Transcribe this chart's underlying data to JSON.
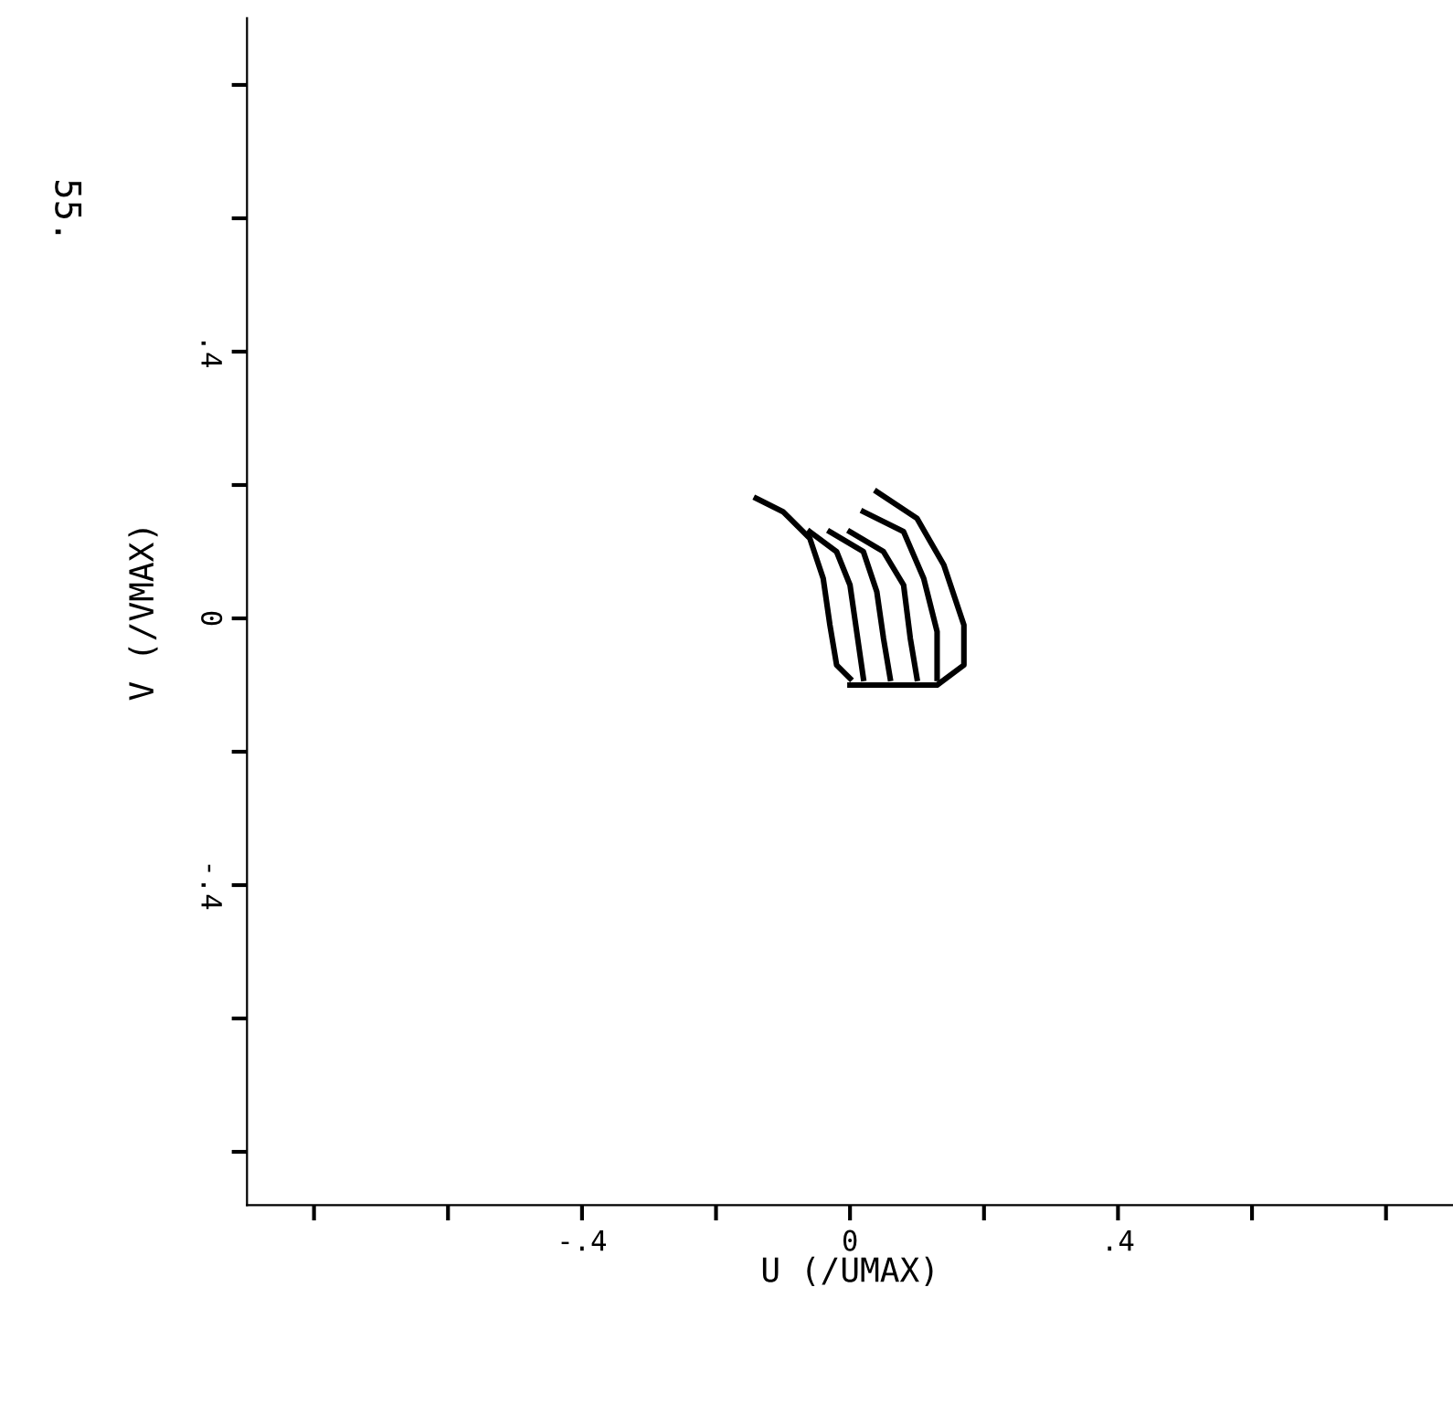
{
  "chart_data": {
    "type": "line",
    "xlabel": "U (/UMAX)",
    "ylabel": "V (/VMAX)",
    "annotations": [
      "55."
    ],
    "xlim": [
      -0.9,
      0.9
    ],
    "ylim": [
      -0.88,
      0.9
    ],
    "xticks": [
      {
        "value": -0.8,
        "label": null
      },
      {
        "value": -0.6,
        "label": null
      },
      {
        "value": -0.4,
        "label": "-.4"
      },
      {
        "value": -0.2,
        "label": null
      },
      0,
      {
        "value": 0.2,
        "label": null
      },
      {
        "value": 0.4,
        "label": ".4"
      },
      {
        "value": 0.6,
        "label": null
      },
      {
        "value": 0.8,
        "label": null
      }
    ],
    "yticks": [
      {
        "value": -0.8,
        "label": null
      },
      {
        "value": -0.6,
        "label": null
      },
      {
        "value": -0.4,
        "label": "-.4"
      },
      {
        "value": -0.2,
        "label": null
      },
      0,
      {
        "value": 0.2,
        "label": null
      },
      {
        "value": 0.4,
        "label": ".4"
      },
      {
        "value": 0.6,
        "label": null
      },
      {
        "value": 0.8,
        "label": null
      }
    ],
    "grid": false,
    "legend": false,
    "marker": "none",
    "line_style": "solid",
    "series": [
      {
        "color": "#000000",
        "x": [
          -0.14,
          -0.1,
          -0.06,
          -0.04,
          -0.03,
          -0.02,
          0.0
        ],
        "values": [
          0.18,
          0.16,
          0.12,
          0.06,
          -0.01,
          -0.07,
          -0.09
        ]
      },
      {
        "color": "#000000",
        "x": [
          -0.06,
          -0.02,
          0.0,
          0.01,
          0.02
        ],
        "values": [
          0.13,
          0.1,
          0.05,
          -0.02,
          -0.09
        ]
      },
      {
        "color": "#000000",
        "x": [
          -0.03,
          0.02,
          0.04,
          0.05,
          0.06
        ],
        "values": [
          0.13,
          0.1,
          0.04,
          -0.03,
          -0.09
        ]
      },
      {
        "color": "#000000",
        "x": [
          0.0,
          0.05,
          0.08,
          0.09,
          0.1
        ],
        "values": [
          0.13,
          0.1,
          0.05,
          -0.03,
          -0.09
        ]
      },
      {
        "color": "#000000",
        "x": [
          0.02,
          0.08,
          0.11,
          0.13,
          0.13
        ],
        "values": [
          0.16,
          0.13,
          0.06,
          -0.02,
          -0.09
        ]
      },
      {
        "color": "#000000",
        "x": [
          0.04,
          0.1,
          0.14,
          0.17,
          0.17,
          0.13,
          0.0
        ],
        "values": [
          0.19,
          0.15,
          0.08,
          -0.01,
          -0.07,
          -0.1,
          -0.1
        ]
      }
    ]
  }
}
